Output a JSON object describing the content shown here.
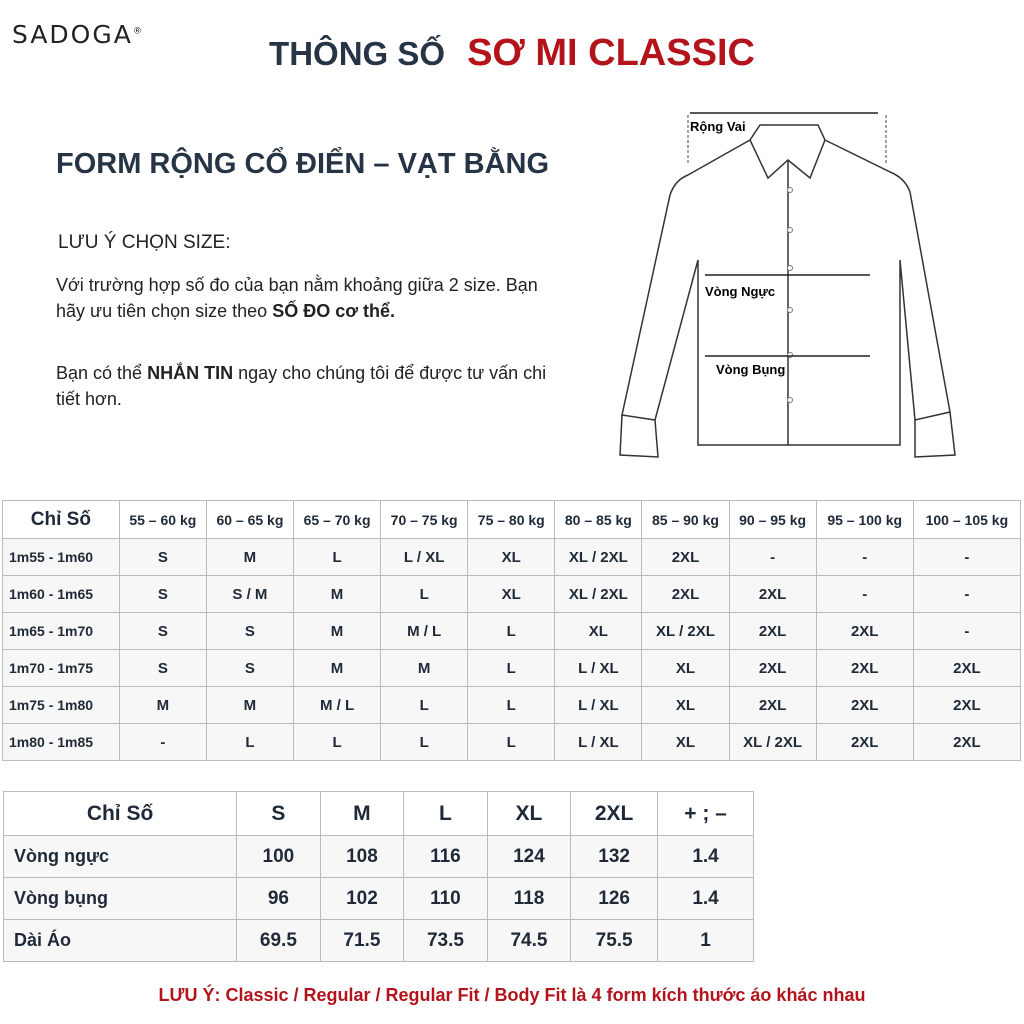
{
  "brand": "SADOGA",
  "title": {
    "part1": "THÔNG SỐ",
    "part2": "SƠ MI CLASSIC"
  },
  "form_title": "FORM RỘNG CỔ ĐIỂN – VẠT BẰNG",
  "note": {
    "heading": "LƯU Ý CHỌN SIZE:",
    "p1_a": "Với trường hợp số đo của bạn nằm khoảng giữa 2 size. Bạn hãy ưu tiên chọn size theo ",
    "p1_b": "SỐ ĐO cơ thể.",
    "p2_a": "Bạn có thể ",
    "p2_b": "NHẮN TIN",
    "p2_c": " ngay cho chúng tôi để được tư vấn chi tiết hơn."
  },
  "diagram": {
    "shoulder": "Rộng Vai",
    "chest": "Vòng Ngực",
    "waist": "Vòng Bụng"
  },
  "size_table": {
    "headers": [
      "Chỉ Số",
      "55 – 60 kg",
      "60 – 65 kg",
      "65 – 70 kg",
      "70 – 75 kg",
      "75 – 80 kg",
      "80 – 85 kg",
      "85 – 90 kg",
      "90 – 95 kg",
      "95 – 100 kg",
      "100 – 105 kg"
    ],
    "rows": [
      [
        "1m55 - 1m60",
        "S",
        "M",
        "L",
        "L / XL",
        "XL",
        "XL / 2XL",
        "2XL",
        "-",
        "-",
        "-"
      ],
      [
        "1m60 - 1m65",
        "S",
        "S / M",
        "M",
        "L",
        "XL",
        "XL / 2XL",
        "2XL",
        "2XL",
        "-",
        "-"
      ],
      [
        "1m65 - 1m70",
        "S",
        "S",
        "M",
        "M / L",
        "L",
        "XL",
        "XL / 2XL",
        "2XL",
        "2XL",
        "-"
      ],
      [
        "1m70 - 1m75",
        "S",
        "S",
        "M",
        "M",
        "L",
        "L / XL",
        "XL",
        "2XL",
        "2XL",
        "2XL"
      ],
      [
        "1m75 - 1m80",
        "M",
        "M",
        "M / L",
        "L",
        "L",
        "L / XL",
        "XL",
        "2XL",
        "2XL",
        "2XL"
      ],
      [
        "1m80 - 1m85",
        "-",
        "L",
        "L",
        "L",
        "L",
        "L / XL",
        "XL",
        "XL / 2XL",
        "2XL",
        "2XL"
      ]
    ]
  },
  "measure_table": {
    "headers": [
      "Chỉ Số",
      "S",
      "M",
      "L",
      "XL",
      "2XL",
      "+ ; –"
    ],
    "rows": [
      [
        "Vòng ngực",
        "100",
        "108",
        "116",
        "124",
        "132",
        "1.4"
      ],
      [
        "Vòng bụng",
        "96",
        "102",
        "110",
        "118",
        "126",
        "1.4"
      ],
      [
        "Dài Áo",
        "69.5",
        "71.5",
        "73.5",
        "74.5",
        "75.5",
        "1"
      ]
    ]
  },
  "footer": "LƯU Ý: Classic / Regular / Regular Fit / Body Fit là 4 form kích thước áo khác nhau",
  "colors": {
    "accent": "#b3141c",
    "dark": "#263445"
  }
}
